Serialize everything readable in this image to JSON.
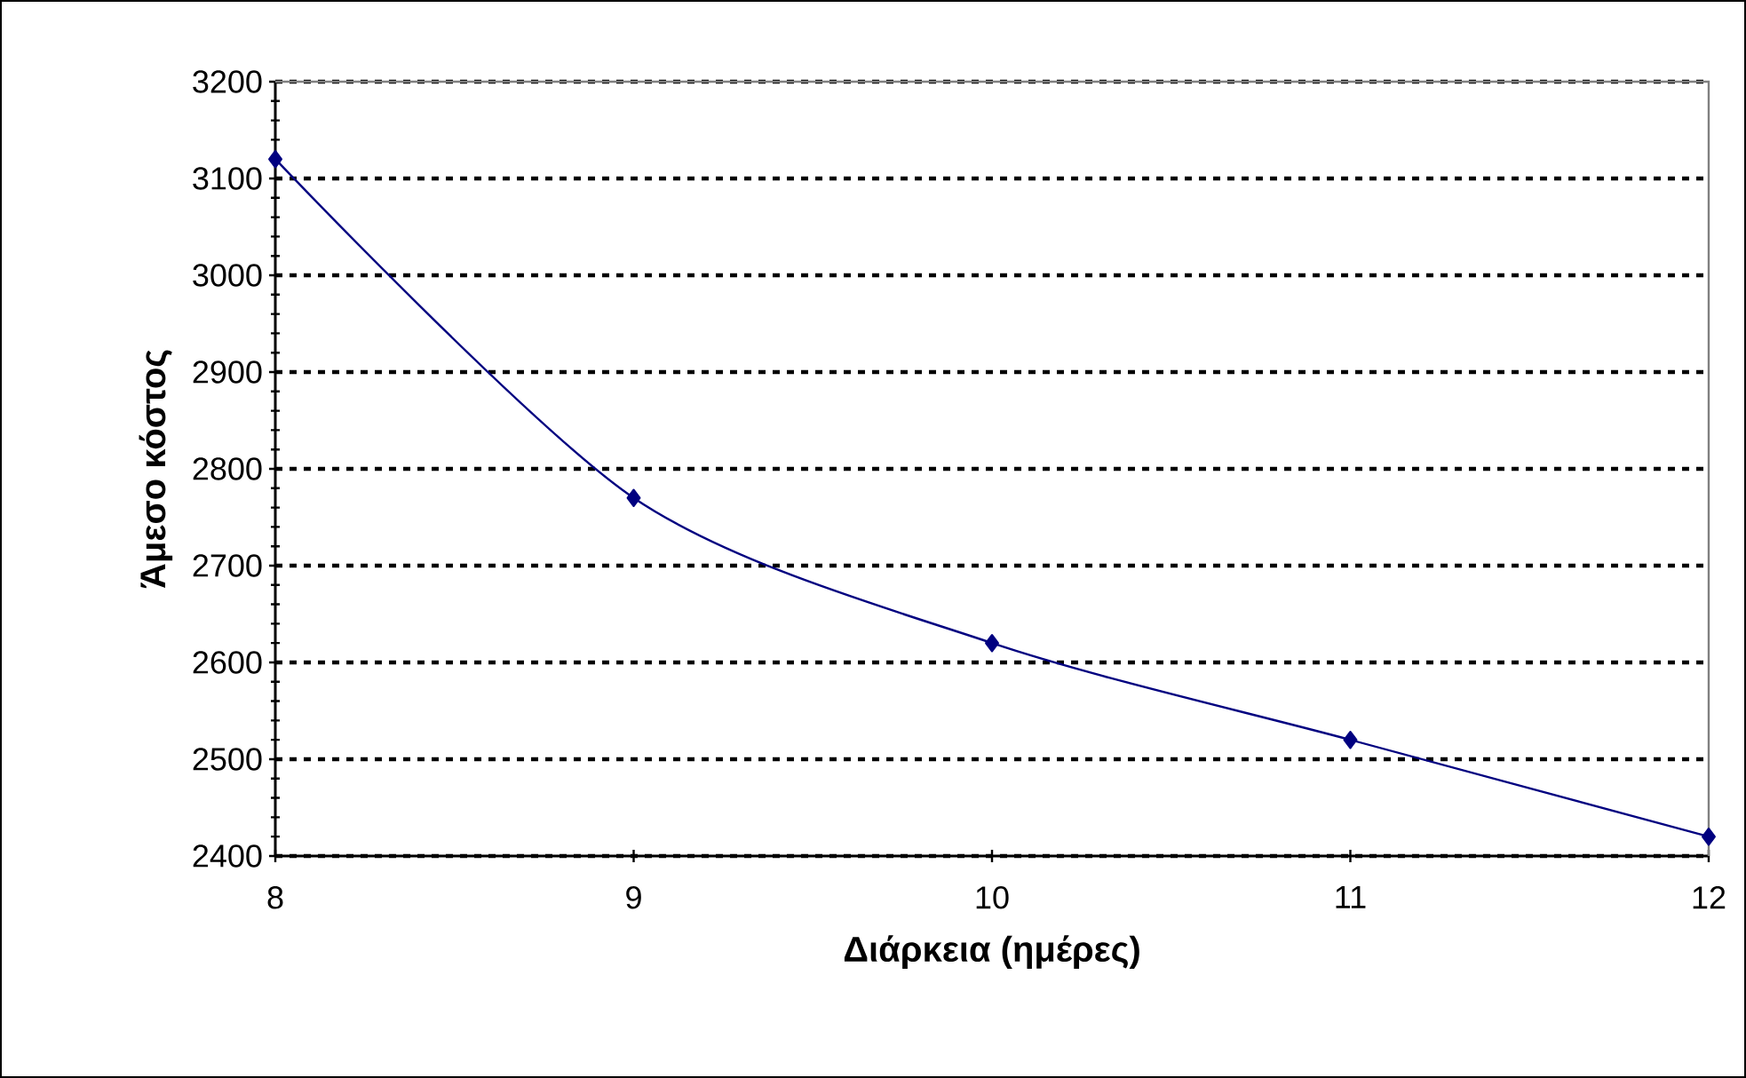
{
  "chart_data": {
    "type": "line",
    "xlabel": "Διάρκεια (ημέρες)",
    "ylabel": "Άμεσο κόστος",
    "x": [
      8,
      9,
      10,
      11,
      12
    ],
    "series": [
      {
        "color": "#000080",
        "values": [
          3120,
          2770,
          2620,
          2520,
          2420
        ]
      }
    ],
    "xlim": [
      8,
      12
    ],
    "ylim": [
      2400,
      3200
    ],
    "xticks": [
      8,
      9,
      10,
      11,
      12
    ],
    "yticks": [
      2400,
      2500,
      2600,
      2700,
      2800,
      2900,
      3000,
      3100,
      3200
    ],
    "grid": "y",
    "marker": "diamond",
    "line_style": "solid"
  }
}
